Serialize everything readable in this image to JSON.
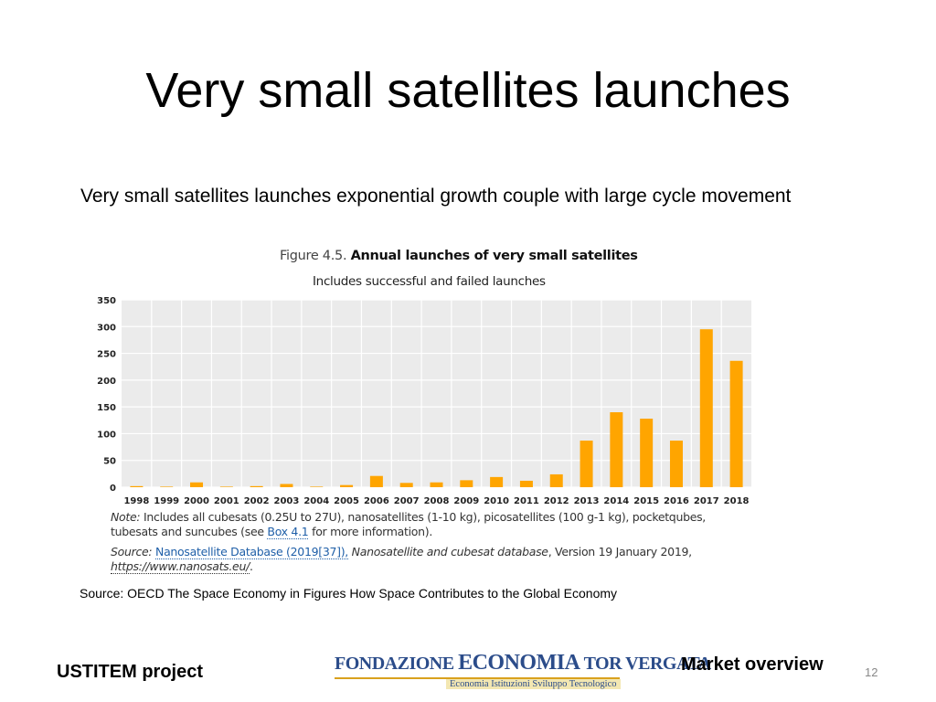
{
  "slide": {
    "title": "Very small satellites launches",
    "subtitle": "Very small satellites launches exponential growth couple with large cycle movement",
    "source": "Source: OECD The Space Economy in Figures How Space Contributes to the Global Economy",
    "footer_left": "USTITEM project",
    "footer_right": "Market overview",
    "page_number": "12"
  },
  "figure": {
    "number": "Figure 4.5.",
    "name": "Annual launches of very small satellites",
    "subheading": "Includes successful and failed launches",
    "note_label": "Note:",
    "note_text_1": "Includes all cubesats (0.25U to 27U), nanosatellites (1-10 kg), picosatellites (100 g-1 kg), pocketqubes, tubesats and suncubes (see",
    "note_link": "Box 4.1",
    "note_text_2": "for more information).",
    "source_label": "Source:",
    "source_link": "Nanosatellite Database (2019[37]),",
    "source_title": "Nanosatellite and cubesat database",
    "source_text": ", Version 19 January 2019,",
    "source_url": "https://www.nanosats.eu/",
    "source_end": "."
  },
  "logo": {
    "word1": "FONDAZIONE",
    "word2": "ECONOMIA",
    "word3": "TOR VERGATA",
    "tagline": "Economia  Istituzioni  Sviluppo Tecnologico"
  },
  "colors": {
    "bar": "#ffa500",
    "plot_bg": "#ebebeb",
    "grid": "#ffffff",
    "logo_blue": "#2b4c8a",
    "logo_gold": "#d9a11d"
  },
  "chart_data": {
    "type": "bar",
    "categories": [
      "1998",
      "1999",
      "2000",
      "2001",
      "2002",
      "2003",
      "2004",
      "2005",
      "2006",
      "2007",
      "2008",
      "2009",
      "2010",
      "2011",
      "2012",
      "2013",
      "2014",
      "2015",
      "2016",
      "2017",
      "2018"
    ],
    "values": [
      2,
      1,
      9,
      1,
      2,
      6,
      1,
      4,
      21,
      8,
      9,
      13,
      19,
      12,
      24,
      87,
      140,
      128,
      87,
      295,
      236
    ],
    "ylim": [
      0,
      350
    ],
    "yticks": [
      0,
      50,
      100,
      150,
      200,
      250,
      300,
      350
    ],
    "grid": true,
    "legend": "none"
  }
}
